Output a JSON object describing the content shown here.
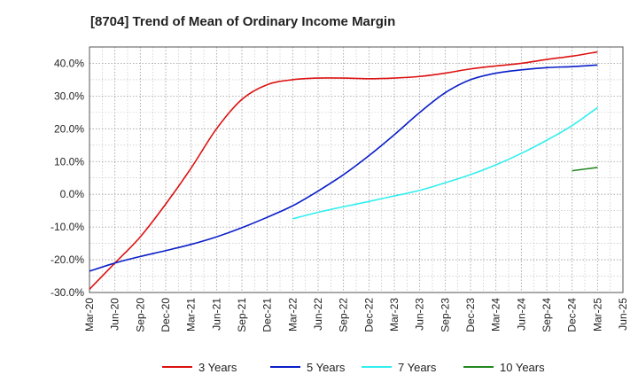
{
  "chart_data": {
    "type": "line",
    "title": "[8704]  Trend of Mean of Ordinary Income Margin",
    "xlabel": "",
    "ylabel": "",
    "x_ticks": [
      "Mar-20",
      "Jun-20",
      "Sep-20",
      "Dec-20",
      "Mar-21",
      "Jun-21",
      "Sep-21",
      "Dec-21",
      "Mar-22",
      "Jun-22",
      "Sep-22",
      "Dec-22",
      "Mar-23",
      "Jun-23",
      "Sep-23",
      "Dec-23",
      "Mar-24",
      "Jun-24",
      "Sep-24",
      "Dec-24",
      "Mar-25",
      "Jun-25"
    ],
    "y_ticks": [
      "-30.0%",
      "-20.0%",
      "-10.0%",
      "0.0%",
      "10.0%",
      "20.0%",
      "30.0%",
      "40.0%"
    ],
    "y_tick_values": [
      -30,
      -20,
      -10,
      0,
      10,
      20,
      30,
      40
    ],
    "ylim": [
      -30,
      45
    ],
    "grid": true,
    "legend_position": "bottom",
    "series": [
      {
        "name": "3 Years",
        "color": "#dd1111",
        "x": [
          "Mar-20",
          "Jun-20",
          "Sep-20",
          "Dec-20",
          "Mar-21",
          "Jun-21",
          "Sep-21",
          "Dec-21",
          "Mar-22",
          "Jun-22",
          "Sep-22",
          "Dec-22",
          "Mar-23",
          "Jun-23",
          "Sep-23",
          "Dec-23",
          "Mar-24",
          "Jun-24",
          "Sep-24",
          "Dec-24",
          "Mar-25"
        ],
        "values": [
          -29,
          -21,
          -13,
          -3,
          8,
          20,
          29,
          33.5,
          35,
          35.5,
          35.5,
          35.3,
          35.5,
          36,
          37,
          38.3,
          39.2,
          40,
          41.2,
          42.2,
          43.5
        ]
      },
      {
        "name": "5 Years",
        "color": "#0a1ec8",
        "x": [
          "Mar-20",
          "Jun-20",
          "Sep-20",
          "Dec-20",
          "Mar-21",
          "Jun-21",
          "Sep-21",
          "Dec-21",
          "Mar-22",
          "Jun-22",
          "Sep-22",
          "Dec-22",
          "Mar-23",
          "Jun-23",
          "Sep-23",
          "Dec-23",
          "Mar-24",
          "Jun-24",
          "Sep-24",
          "Dec-24",
          "Mar-25"
        ],
        "values": [
          -23.5,
          -21,
          -19,
          -17.2,
          -15.3,
          -13,
          -10.2,
          -7,
          -3.5,
          1,
          6,
          11.8,
          18.2,
          25,
          31,
          35,
          37,
          38,
          38.7,
          39,
          39.5
        ]
      },
      {
        "name": "7 Years",
        "color": "#33eeee",
        "x": [
          "Mar-22",
          "Jun-22",
          "Sep-22",
          "Dec-22",
          "Mar-23",
          "Jun-23",
          "Sep-23",
          "Dec-23",
          "Mar-24",
          "Jun-24",
          "Sep-24",
          "Dec-24",
          "Mar-25"
        ],
        "values": [
          -7.5,
          -5.5,
          -3.8,
          -2.2,
          -0.5,
          1.2,
          3.5,
          6,
          9,
          12.5,
          16.5,
          21,
          26.5
        ]
      },
      {
        "name": "10 Years",
        "color": "#228822",
        "x": [
          "Dec-24",
          "Mar-25"
        ],
        "values": [
          7.2,
          8.2
        ]
      }
    ]
  }
}
